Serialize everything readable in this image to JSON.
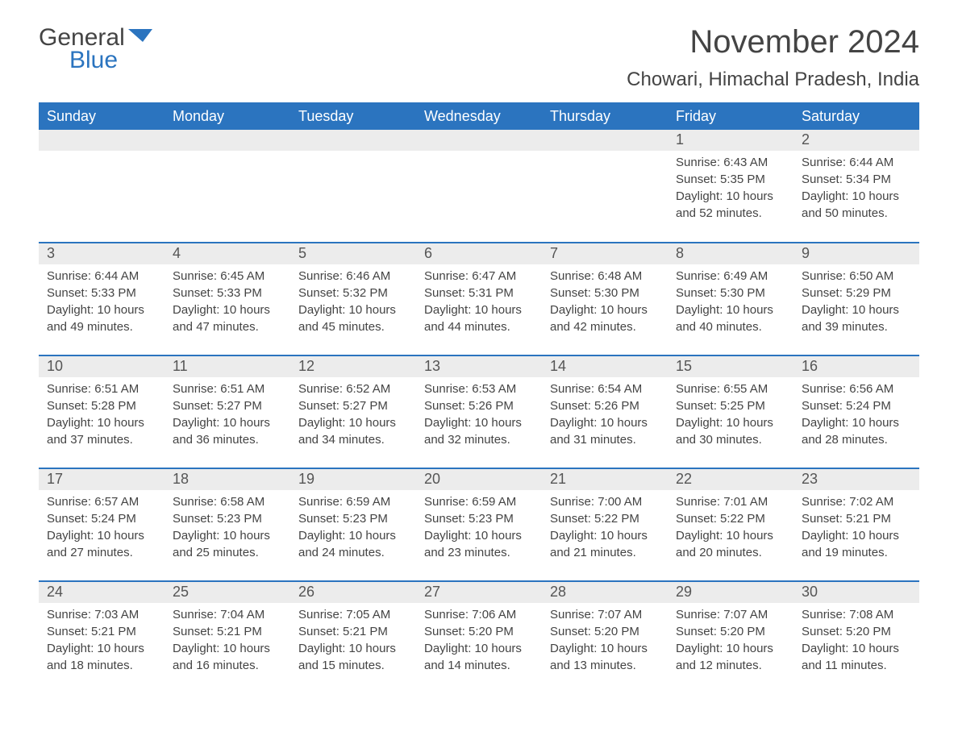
{
  "brand": {
    "part1": "General",
    "part2": "Blue",
    "flag_color": "#2b74bf"
  },
  "title": "November 2024",
  "location": "Chowari, Himachal Pradesh, India",
  "colors": {
    "header_bg": "#2b74bf",
    "header_fg": "#ffffff",
    "daynum_bg": "#ececec",
    "text": "#444444",
    "rule": "#2b74bf"
  },
  "font": {
    "family": "Arial",
    "title_size_pt": 30,
    "location_size_pt": 18,
    "header_size_pt": 14,
    "body_size_pt": 11
  },
  "weekdays": [
    "Sunday",
    "Monday",
    "Tuesday",
    "Wednesday",
    "Thursday",
    "Friday",
    "Saturday"
  ],
  "first_weekday_index": 5,
  "days": [
    {
      "n": 1,
      "sunrise": "6:43 AM",
      "sunset": "5:35 PM",
      "daylight": "10 hours and 52 minutes."
    },
    {
      "n": 2,
      "sunrise": "6:44 AM",
      "sunset": "5:34 PM",
      "daylight": "10 hours and 50 minutes."
    },
    {
      "n": 3,
      "sunrise": "6:44 AM",
      "sunset": "5:33 PM",
      "daylight": "10 hours and 49 minutes."
    },
    {
      "n": 4,
      "sunrise": "6:45 AM",
      "sunset": "5:33 PM",
      "daylight": "10 hours and 47 minutes."
    },
    {
      "n": 5,
      "sunrise": "6:46 AM",
      "sunset": "5:32 PM",
      "daylight": "10 hours and 45 minutes."
    },
    {
      "n": 6,
      "sunrise": "6:47 AM",
      "sunset": "5:31 PM",
      "daylight": "10 hours and 44 minutes."
    },
    {
      "n": 7,
      "sunrise": "6:48 AM",
      "sunset": "5:30 PM",
      "daylight": "10 hours and 42 minutes."
    },
    {
      "n": 8,
      "sunrise": "6:49 AM",
      "sunset": "5:30 PM",
      "daylight": "10 hours and 40 minutes."
    },
    {
      "n": 9,
      "sunrise": "6:50 AM",
      "sunset": "5:29 PM",
      "daylight": "10 hours and 39 minutes."
    },
    {
      "n": 10,
      "sunrise": "6:51 AM",
      "sunset": "5:28 PM",
      "daylight": "10 hours and 37 minutes."
    },
    {
      "n": 11,
      "sunrise": "6:51 AM",
      "sunset": "5:27 PM",
      "daylight": "10 hours and 36 minutes."
    },
    {
      "n": 12,
      "sunrise": "6:52 AM",
      "sunset": "5:27 PM",
      "daylight": "10 hours and 34 minutes."
    },
    {
      "n": 13,
      "sunrise": "6:53 AM",
      "sunset": "5:26 PM",
      "daylight": "10 hours and 32 minutes."
    },
    {
      "n": 14,
      "sunrise": "6:54 AM",
      "sunset": "5:26 PM",
      "daylight": "10 hours and 31 minutes."
    },
    {
      "n": 15,
      "sunrise": "6:55 AM",
      "sunset": "5:25 PM",
      "daylight": "10 hours and 30 minutes."
    },
    {
      "n": 16,
      "sunrise": "6:56 AM",
      "sunset": "5:24 PM",
      "daylight": "10 hours and 28 minutes."
    },
    {
      "n": 17,
      "sunrise": "6:57 AM",
      "sunset": "5:24 PM",
      "daylight": "10 hours and 27 minutes."
    },
    {
      "n": 18,
      "sunrise": "6:58 AM",
      "sunset": "5:23 PM",
      "daylight": "10 hours and 25 minutes."
    },
    {
      "n": 19,
      "sunrise": "6:59 AM",
      "sunset": "5:23 PM",
      "daylight": "10 hours and 24 minutes."
    },
    {
      "n": 20,
      "sunrise": "6:59 AM",
      "sunset": "5:23 PM",
      "daylight": "10 hours and 23 minutes."
    },
    {
      "n": 21,
      "sunrise": "7:00 AM",
      "sunset": "5:22 PM",
      "daylight": "10 hours and 21 minutes."
    },
    {
      "n": 22,
      "sunrise": "7:01 AM",
      "sunset": "5:22 PM",
      "daylight": "10 hours and 20 minutes."
    },
    {
      "n": 23,
      "sunrise": "7:02 AM",
      "sunset": "5:21 PM",
      "daylight": "10 hours and 19 minutes."
    },
    {
      "n": 24,
      "sunrise": "7:03 AM",
      "sunset": "5:21 PM",
      "daylight": "10 hours and 18 minutes."
    },
    {
      "n": 25,
      "sunrise": "7:04 AM",
      "sunset": "5:21 PM",
      "daylight": "10 hours and 16 minutes."
    },
    {
      "n": 26,
      "sunrise": "7:05 AM",
      "sunset": "5:21 PM",
      "daylight": "10 hours and 15 minutes."
    },
    {
      "n": 27,
      "sunrise": "7:06 AM",
      "sunset": "5:20 PM",
      "daylight": "10 hours and 14 minutes."
    },
    {
      "n": 28,
      "sunrise": "7:07 AM",
      "sunset": "5:20 PM",
      "daylight": "10 hours and 13 minutes."
    },
    {
      "n": 29,
      "sunrise": "7:07 AM",
      "sunset": "5:20 PM",
      "daylight": "10 hours and 12 minutes."
    },
    {
      "n": 30,
      "sunrise": "7:08 AM",
      "sunset": "5:20 PM",
      "daylight": "10 hours and 11 minutes."
    }
  ],
  "labels": {
    "sunrise": "Sunrise:",
    "sunset": "Sunset:",
    "daylight": "Daylight:"
  }
}
